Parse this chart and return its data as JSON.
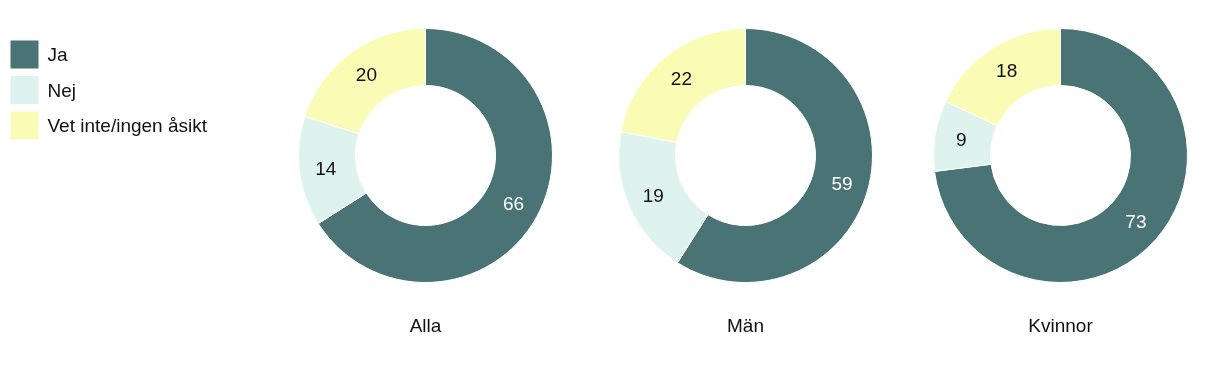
{
  "chart_data": {
    "type": "donut",
    "categories": [
      "Ja",
      "Nej",
      "Vet inte/ingen åsikt"
    ],
    "colors": [
      "#4a7376",
      "#dff3ee",
      "#fafbb5"
    ],
    "data_labels": true,
    "legend": "top left",
    "series": [
      {
        "name": "Alla",
        "values": [
          66,
          14,
          20
        ]
      },
      {
        "name": "Män",
        "values": [
          59,
          19,
          22
        ]
      },
      {
        "name": "Kvinnor",
        "values": [
          73,
          9,
          18
        ]
      }
    ]
  }
}
